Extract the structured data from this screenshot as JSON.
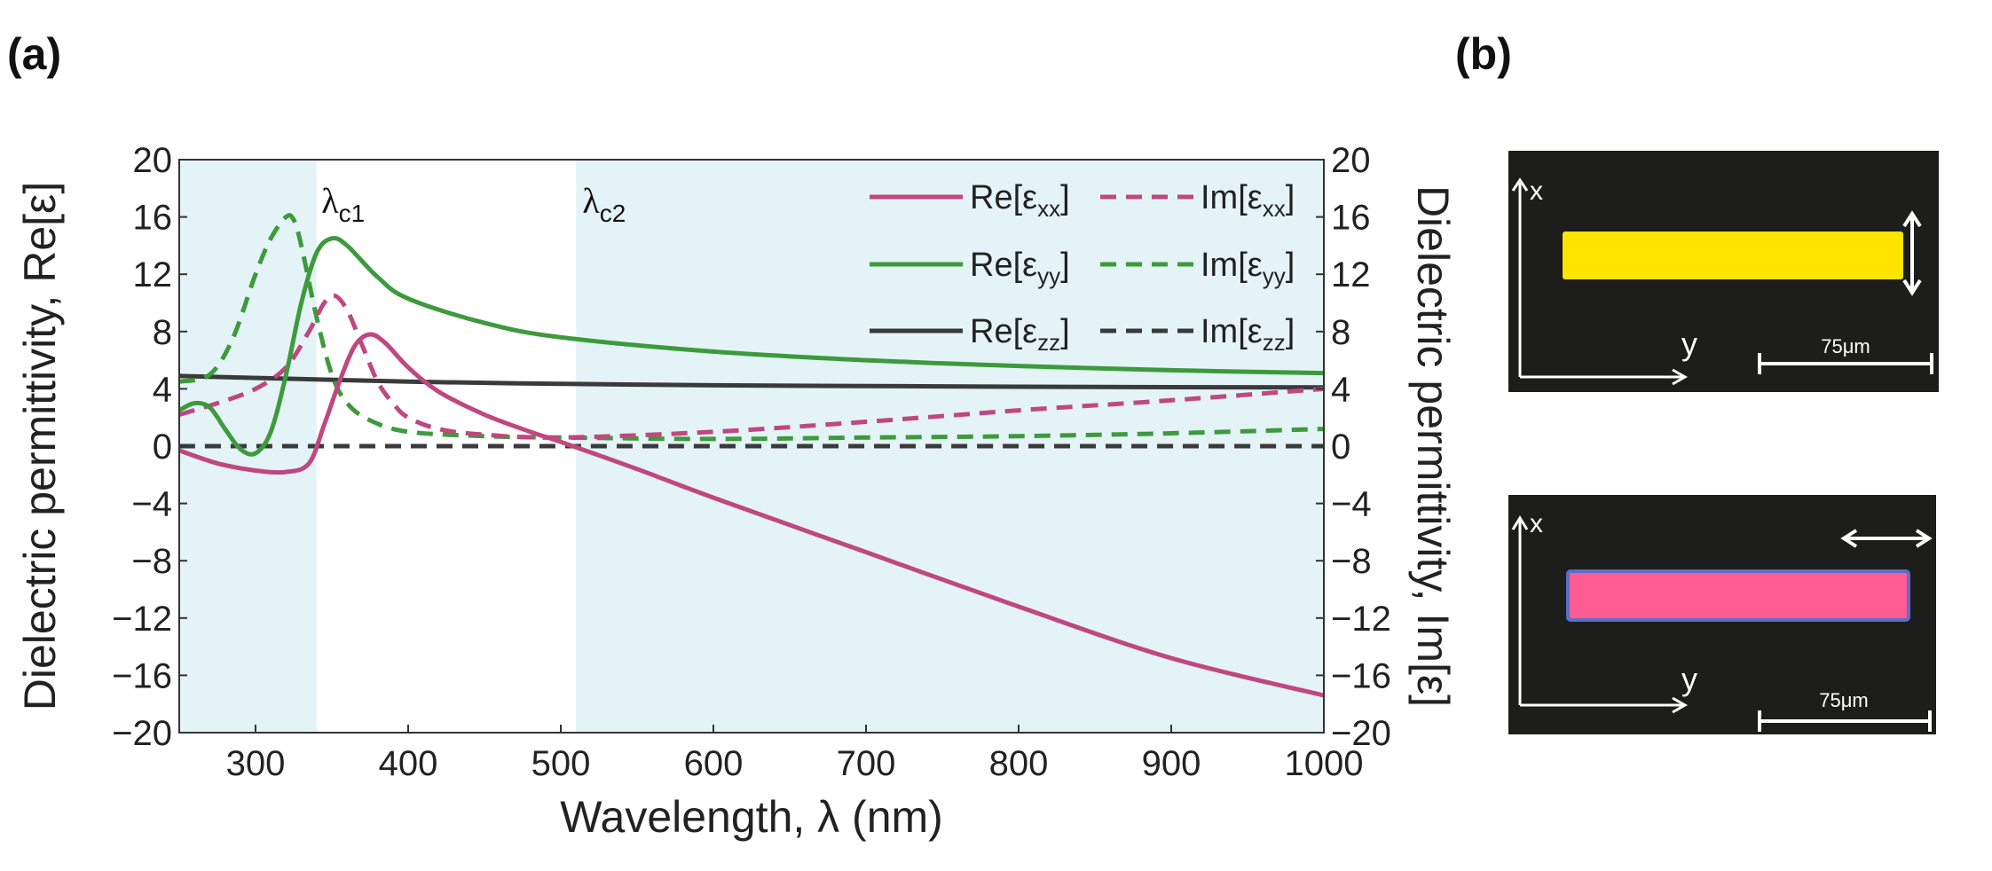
{
  "panels": {
    "a": "(a)",
    "b": "(b)"
  },
  "chart_data": {
    "type": "line",
    "title": "",
    "xlabel": "Wavelength, λ (nm)",
    "ylabel_left": "Dielectric permittivity, Re[ε]",
    "ylabel_right": "Dielectric permittivity, Im[ε]",
    "xlim": [
      250,
      1000
    ],
    "ylim": [
      -20,
      20
    ],
    "xticks": [
      300,
      400,
      500,
      600,
      700,
      800,
      900,
      1000
    ],
    "yticks": [
      -20,
      -16,
      -12,
      -8,
      -4,
      0,
      4,
      8,
      12,
      16,
      20
    ],
    "grid": false,
    "legend_position": "top-right",
    "shaded_regions": [
      {
        "x": [
          250,
          340
        ]
      },
      {
        "x": [
          510,
          1000
        ]
      }
    ],
    "shade_color": "#e4f4f6",
    "annotations": [
      {
        "base": "λ",
        "sub": "c1",
        "x": 342
      },
      {
        "base": "λ",
        "sub": "c2",
        "x": 513
      }
    ],
    "series": [
      {
        "name": "Re[εxx]",
        "label_base": "Re[ε",
        "label_sub": "xx",
        "label_end": "]",
        "color": "#c0477f",
        "dash": false,
        "x": [
          250,
          275,
          300,
          320,
          335,
          345,
          355,
          365,
          375,
          385,
          400,
          420,
          450,
          480,
          500,
          550,
          600,
          700,
          800,
          900,
          1000
        ],
        "y": [
          -0.3,
          -1.2,
          -1.7,
          -1.8,
          -1.2,
          1.5,
          4.5,
          7.0,
          7.8,
          7.2,
          5.5,
          3.8,
          2.2,
          1.0,
          0.3,
          -1.6,
          -3.6,
          -7.4,
          -11.2,
          -14.8,
          -17.4
        ]
      },
      {
        "name": "Im[εxx]",
        "label_base": "Im[ε",
        "label_sub": "xx",
        "label_end": "]",
        "color": "#c0477f",
        "dash": true,
        "x": [
          250,
          275,
          300,
          320,
          335,
          345,
          352,
          360,
          370,
          380,
          390,
          400,
          420,
          450,
          500,
          600,
          700,
          800,
          900,
          1000
        ],
        "y": [
          2.2,
          3.0,
          4.0,
          5.5,
          8.0,
          10.0,
          10.5,
          9.5,
          7.0,
          4.5,
          3.0,
          2.0,
          1.2,
          0.8,
          0.6,
          1.0,
          1.7,
          2.5,
          3.2,
          4.0
        ]
      },
      {
        "name": "Re[εyy]",
        "label_base": "Re[ε",
        "label_sub": "yy",
        "label_end": "]",
        "color": "#3d9a3d",
        "dash": false,
        "x": [
          250,
          260,
          270,
          280,
          290,
          300,
          310,
          320,
          330,
          340,
          350,
          360,
          380,
          400,
          450,
          500,
          600,
          700,
          800,
          900,
          1000
        ],
        "y": [
          2.5,
          3.0,
          2.7,
          1.2,
          -0.2,
          -0.5,
          1.0,
          5.0,
          10.0,
          13.5,
          14.5,
          14.0,
          11.8,
          10.3,
          8.6,
          7.6,
          6.6,
          6.0,
          5.6,
          5.3,
          5.1
        ]
      },
      {
        "name": "Im[εyy]",
        "label_base": "Im[ε",
        "label_sub": "yy",
        "label_end": "]",
        "color": "#3d9a3d",
        "dash": true,
        "x": [
          250,
          270,
          285,
          300,
          310,
          320,
          325,
          330,
          340,
          350,
          360,
          375,
          400,
          450,
          500,
          600,
          700,
          800,
          900,
          1000
        ],
        "y": [
          4.5,
          5.0,
          7.5,
          12.0,
          14.5,
          16.0,
          15.8,
          14.0,
          9.0,
          5.0,
          3.0,
          1.8,
          1.0,
          0.7,
          0.6,
          0.5,
          0.6,
          0.7,
          0.9,
          1.2
        ]
      },
      {
        "name": "Re[εzz]",
        "label_base": "Re[ε",
        "label_sub": "zz",
        "label_end": "]",
        "color": "#3a3a3a",
        "dash": false,
        "x": [
          250,
          400,
          500,
          600,
          700,
          800,
          900,
          1000
        ],
        "y": [
          4.9,
          4.5,
          4.35,
          4.25,
          4.2,
          4.15,
          4.12,
          4.1
        ]
      },
      {
        "name": "Im[εzz]",
        "label_base": "Im[ε",
        "label_sub": "zz",
        "label_end": "]",
        "color": "#3a3a3a",
        "dash": true,
        "x": [
          250,
          1000
        ],
        "y": [
          0,
          0
        ]
      }
    ]
  },
  "photos": [
    {
      "x_label": "x",
      "y_label": "y",
      "scale_label": "75μm",
      "crystal_color": "#ffe400",
      "arrow": "vertical"
    },
    {
      "x_label": "x",
      "y_label": "y",
      "scale_label": "75μm",
      "crystal_color": "#ff5c93",
      "arrow": "horizontal"
    }
  ]
}
